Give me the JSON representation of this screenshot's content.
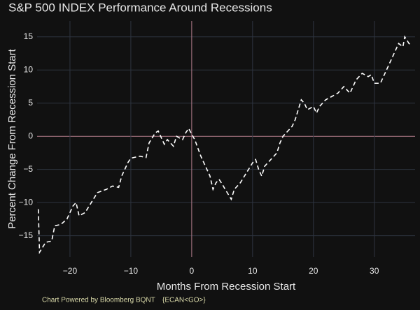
{
  "chart_data": {
    "type": "line",
    "title": "S&P 500 INDEX Performance Around Recessions",
    "x_label": "Months From Recession Start",
    "y_label": "Percent Change From Recession Start",
    "footer": "Chart Powered by Bloomberg BQNT",
    "footer_code": "{ECAN<GO>}",
    "xlim": [
      -25.4,
      36.7
    ],
    "ylim": [
      -18.2,
      17.4
    ],
    "xticks": [
      {
        "value": -20,
        "label": "−20"
      },
      {
        "value": -10,
        "label": "−10"
      },
      0,
      10,
      20,
      30
    ],
    "yticks": [
      {
        "value": -15,
        "label": "−15"
      },
      {
        "value": -10,
        "label": "−10"
      },
      {
        "value": -5,
        "label": "−5"
      },
      0,
      5,
      10,
      15
    ],
    "grid": true,
    "background": "#111111",
    "grid_color": "#2e3440",
    "zero_line_color": "#b07a88",
    "dashed": true,
    "series": [
      {
        "color": "#ffffff",
        "x": [
          -25.2,
          -25,
          -24,
          -23,
          -22.5,
          -21.5,
          -20.5,
          -19.5,
          -19,
          -18.5,
          -17.5,
          -16.5,
          -15.5,
          -14,
          -13,
          -12,
          -11.5,
          -10.5,
          -10,
          -8.5,
          -7.5,
          -7,
          -6,
          -5.5,
          -4.5,
          -4,
          -3,
          -2.5,
          -1.5,
          -1,
          -0.5,
          0,
          0.5,
          1.5,
          2.5,
          3,
          3.5,
          4,
          4.5,
          5,
          5.5,
          6.5,
          7,
          8,
          9,
          10,
          10.5,
          11,
          11.5,
          12,
          13,
          14,
          14.5,
          15,
          16.5,
          17,
          18,
          18.5,
          19,
          20,
          20.5,
          21,
          22,
          23,
          24,
          25,
          26,
          27,
          28,
          29,
          29.5,
          30,
          31,
          32,
          33,
          34,
          34.7,
          35,
          35.7,
          36
        ],
        "values": [
          -11,
          -17.5,
          -16,
          -15.8,
          -13.5,
          -13.3,
          -12.5,
          -10.5,
          -10,
          -12,
          -11.5,
          -10,
          -8.5,
          -8,
          -7.5,
          -7.7,
          -6,
          -4,
          -3.3,
          -3,
          -3.2,
          -1,
          0.5,
          0.8,
          -1.2,
          -0.5,
          -1.5,
          0,
          -0.5,
          0.5,
          1.2,
          0.3,
          -0.5,
          -3,
          -5,
          -6,
          -8,
          -7,
          -6.5,
          -7.2,
          -8,
          -9.5,
          -8,
          -7,
          -5.5,
          -4,
          -3.5,
          -5,
          -6,
          -4.5,
          -3.5,
          -2.5,
          -1,
          0,
          1.5,
          2.5,
          5.5,
          5,
          4,
          4.5,
          3.5,
          4.5,
          5.5,
          6,
          6.5,
          7.5,
          6.5,
          8.5,
          9.5,
          9,
          9.3,
          8,
          8,
          10,
          12,
          14,
          13.5,
          15,
          14,
          13.8
        ]
      }
    ]
  }
}
